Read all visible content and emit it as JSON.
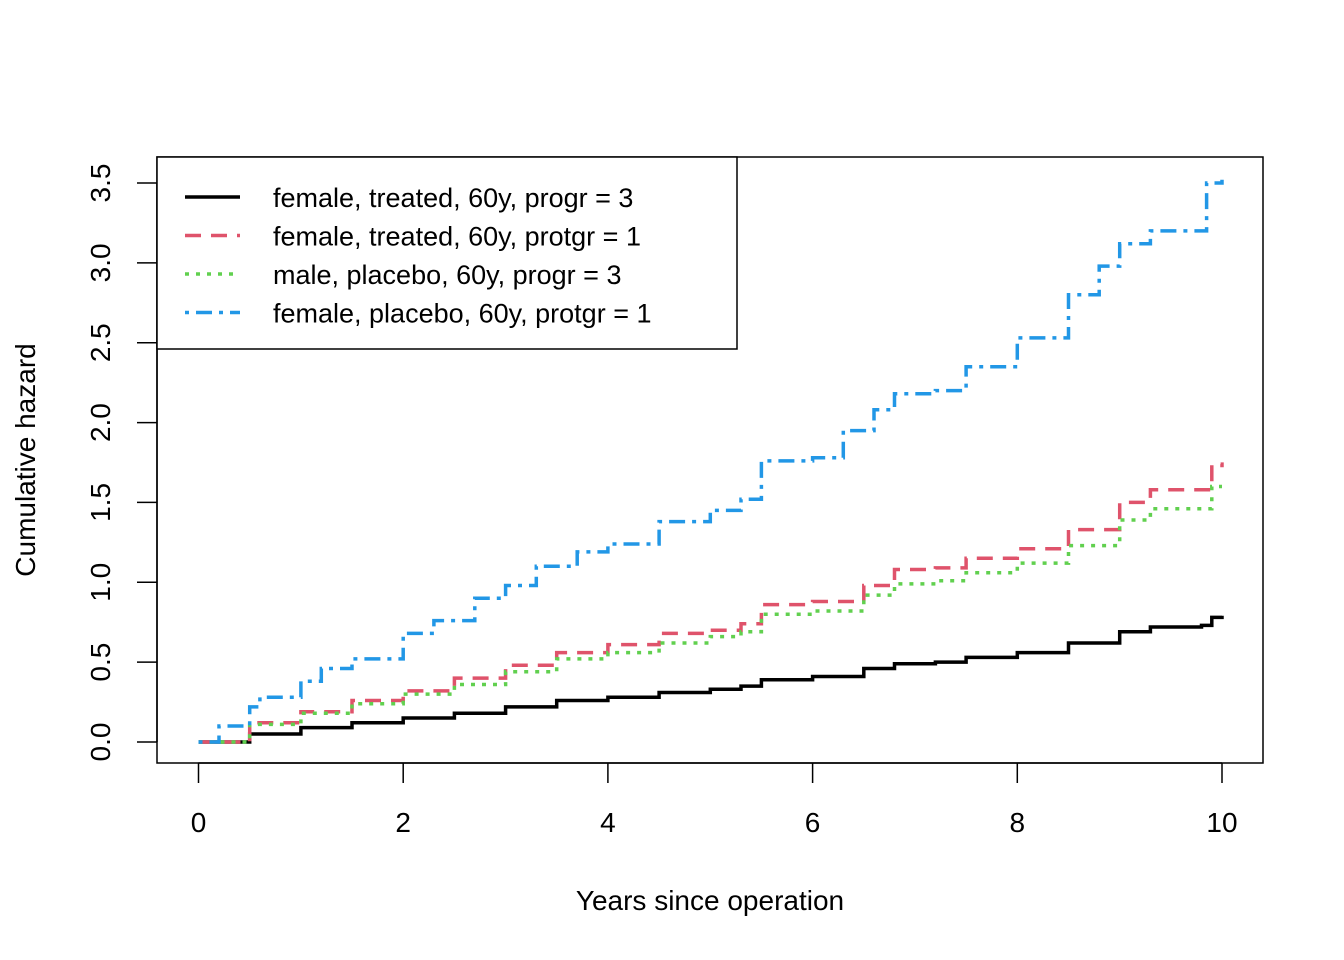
{
  "chart_data": {
    "type": "line",
    "step": true,
    "title": "",
    "xlabel": "Years since operation",
    "ylabel": "Cumulative hazard",
    "xlim": [
      0,
      10
    ],
    "ylim": [
      0,
      3.5
    ],
    "xticks": [
      0,
      2,
      4,
      6,
      8,
      10
    ],
    "xtick_labels": [
      "0",
      "2",
      "4",
      "6",
      "8",
      "10"
    ],
    "yticks": [
      0,
      0.5,
      1,
      1.5,
      2,
      2.5,
      3,
      3.5
    ],
    "ytick_labels": [
      "0.0",
      "0.5",
      "1.0",
      "1.5",
      "2.0",
      "2.5",
      "3.0",
      "3.5"
    ],
    "grid": false,
    "legend_position": "top-left",
    "series": [
      {
        "name": "female, treated, 60y, progr = 3",
        "color": "#000000",
        "dash": "solid",
        "x": [
          0,
          0.5,
          1.0,
          1.5,
          2.0,
          2.5,
          3.0,
          3.5,
          4.0,
          4.5,
          5.0,
          5.3,
          5.5,
          6.0,
          6.5,
          6.8,
          7.2,
          7.5,
          8.0,
          8.5,
          9.0,
          9.3,
          9.8,
          9.9,
          10.0
        ],
        "y": [
          0,
          0.05,
          0.09,
          0.12,
          0.15,
          0.18,
          0.22,
          0.26,
          0.28,
          0.31,
          0.33,
          0.35,
          0.39,
          0.41,
          0.46,
          0.49,
          0.5,
          0.53,
          0.56,
          0.62,
          0.69,
          0.72,
          0.73,
          0.78,
          0.79
        ]
      },
      {
        "name": "female, treated, 60y, protgr = 1",
        "color": "#DF536B",
        "dash": "dashed",
        "x": [
          0,
          0.5,
          1.0,
          1.5,
          2.0,
          2.5,
          3.0,
          3.5,
          4.0,
          4.5,
          5.0,
          5.3,
          5.5,
          6.0,
          6.5,
          6.8,
          7.2,
          7.5,
          8.0,
          8.5,
          9.0,
          9.3,
          9.8,
          9.9,
          10.0
        ],
        "y": [
          0,
          0.12,
          0.19,
          0.26,
          0.32,
          0.4,
          0.48,
          0.56,
          0.61,
          0.68,
          0.7,
          0.74,
          0.86,
          0.88,
          0.98,
          1.08,
          1.09,
          1.15,
          1.21,
          1.33,
          1.5,
          1.58,
          1.58,
          1.74,
          1.72
        ]
      },
      {
        "name": "male, placebo, 60y, progr = 3",
        "color": "#61D04F",
        "dash": "dotted",
        "x": [
          0,
          0.5,
          1.0,
          1.5,
          2.0,
          2.5,
          3.0,
          3.5,
          4.0,
          4.5,
          5.0,
          5.3,
          5.5,
          6.0,
          6.5,
          6.8,
          7.2,
          7.5,
          8.0,
          8.5,
          9.0,
          9.3,
          9.8,
          9.9,
          10.0
        ],
        "y": [
          0,
          0.11,
          0.18,
          0.24,
          0.3,
          0.36,
          0.44,
          0.52,
          0.56,
          0.62,
          0.66,
          0.69,
          0.8,
          0.82,
          0.92,
          0.99,
          1.01,
          1.06,
          1.12,
          1.23,
          1.39,
          1.46,
          1.46,
          1.6,
          1.6
        ]
      },
      {
        "name": "female, placebo, 60y, protgr = 1",
        "color": "#2297E6",
        "dash": "dotdash",
        "x": [
          0,
          0.2,
          0.5,
          0.6,
          1.0,
          1.2,
          1.5,
          2.0,
          2.3,
          2.7,
          3.0,
          3.3,
          3.7,
          4.0,
          4.5,
          5.0,
          5.3,
          5.5,
          6.0,
          6.3,
          6.6,
          6.8,
          7.2,
          7.5,
          8.0,
          8.5,
          8.8,
          9.0,
          9.3,
          9.8,
          9.85,
          10.0
        ],
        "y": [
          0,
          0.1,
          0.22,
          0.28,
          0.38,
          0.46,
          0.52,
          0.68,
          0.76,
          0.9,
          0.98,
          1.1,
          1.19,
          1.24,
          1.38,
          1.45,
          1.52,
          1.76,
          1.78,
          1.95,
          2.08,
          2.18,
          2.2,
          2.35,
          2.53,
          2.8,
          2.98,
          3.12,
          3.2,
          3.2,
          3.5,
          3.52
        ]
      }
    ]
  }
}
